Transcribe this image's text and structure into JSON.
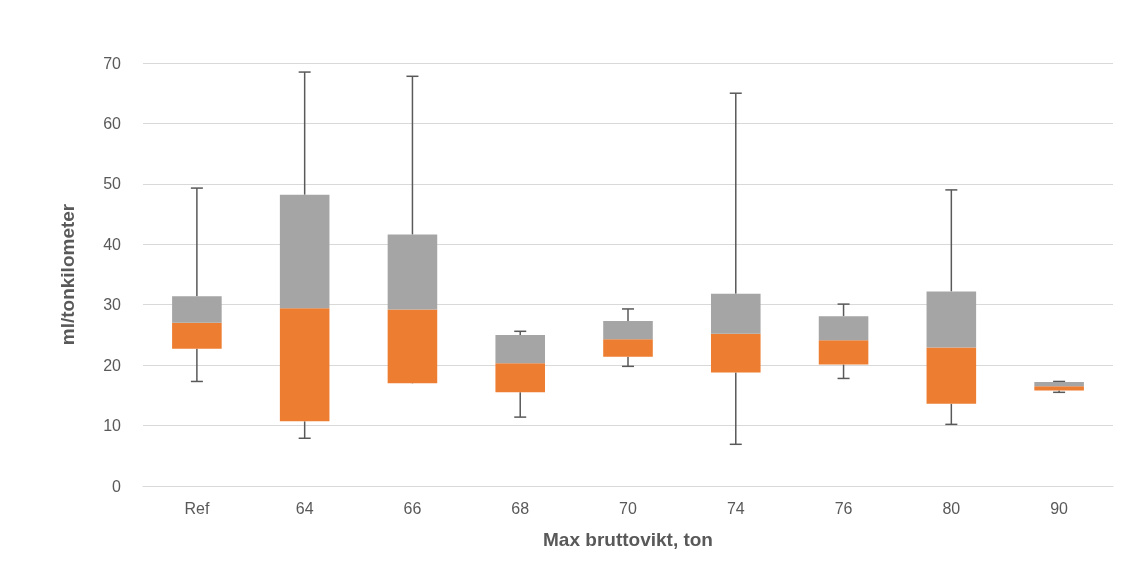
{
  "chart_data": {
    "type": "box",
    "xlabel": "Max bruttovikt, ton",
    "ylabel": "ml/tonkilometer",
    "categories": [
      "Ref",
      "64",
      "66",
      "68",
      "70",
      "74",
      "76",
      "80",
      "90"
    ],
    "series": [
      {
        "color": [
          "#ed7d31",
          "#a5a5a5"
        ],
        "boxes": [
          {
            "low": 17.3,
            "q1": 22.7,
            "median": 27,
            "q3": 31.4,
            "high": 49.3
          },
          {
            "low": 7.9,
            "q1": 10.7,
            "median": 29.4,
            "q3": 48.2,
            "high": 68.5
          },
          {
            "low": 19.3,
            "q1": 17,
            "median": 29.2,
            "q3": 41.6,
            "high": 67.8
          },
          {
            "low": 11.4,
            "q1": 15.5,
            "median": 20.3,
            "q3": 25,
            "high": 25.6
          },
          {
            "low": 19.8,
            "q1": 21.4,
            "median": 24.3,
            "q3": 27.3,
            "high": 29.3
          },
          {
            "low": 6.9,
            "q1": 18.8,
            "median": 25.2,
            "q3": 31.8,
            "high": 65
          },
          {
            "low": 17.8,
            "q1": 20.1,
            "median": 24.1,
            "q3": 28.1,
            "high": 30.1
          },
          {
            "low": 10.2,
            "q1": 13.6,
            "median": 22.9,
            "q3": 32.2,
            "high": 49
          },
          {
            "low": 15.5,
            "q1": 15.8,
            "median": 16.5,
            "q3": 17.2,
            "high": 17.3
          }
        ]
      }
    ],
    "ylim": [
      0,
      70
    ],
    "yticks": [
      0,
      10,
      20,
      30,
      40,
      50,
      60,
      70
    ],
    "grid": "y"
  }
}
